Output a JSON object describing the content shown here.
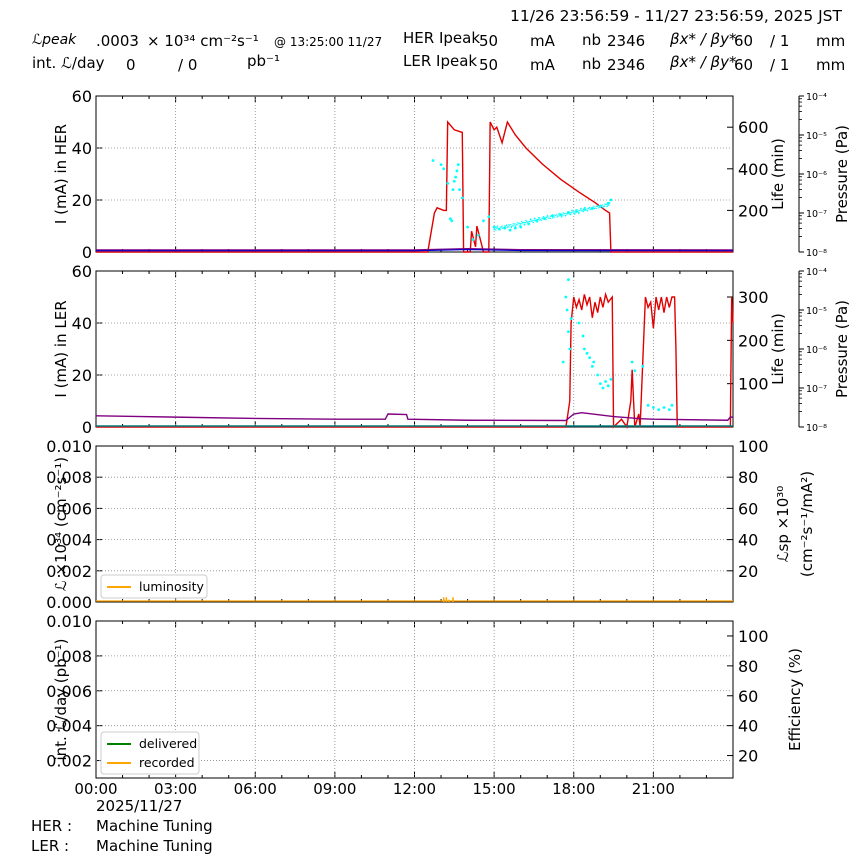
{
  "header": {
    "time_range": "11/26 23:56:59 - 11/27 23:56:59, 2025 JST",
    "lpeak_label": "ℒpeak",
    "lpeak_value": ".0003",
    "lpeak_unit": "× 10³⁴ cm⁻²s⁻¹",
    "lpeak_time": "@ 13:25:00 11/27",
    "intl_label": "int. ℒ/day",
    "intl_value": "0",
    "intl_sep": "/ 0",
    "intl_unit": "pb⁻¹",
    "her": {
      "label": "HER Ipeak",
      "current": "50",
      "current_unit": "mA",
      "nb_label": "nb",
      "nb": "2346",
      "beta_label": "βx* / βy*",
      "beta_x": "60",
      "beta_y": "/ 1",
      "beta_unit": "mm"
    },
    "ler": {
      "label": "LER Ipeak",
      "current": "50",
      "current_unit": "mA",
      "nb_label": "nb",
      "nb": "2346",
      "beta_label": "βx* / βy*",
      "beta_x": "60",
      "beta_y": "/ 1",
      "beta_unit": "mm"
    }
  },
  "footer": {
    "date": "2025/11/27",
    "her_label": "HER :",
    "her_status": "Machine Tuning",
    "ler_label": "LER :",
    "ler_status": "Machine Tuning"
  },
  "colors": {
    "current": "#e00000",
    "life": "#00ffff",
    "pressure_low": "#0000cc",
    "pressure_high": "#800080",
    "luminosity": "#ffa500",
    "delivered": "#008000",
    "recorded": "#ffa500",
    "baseline": "#008080"
  },
  "chart_data": [
    {
      "type": "line",
      "panel": "HER",
      "ylabel": "I (mA) in HER",
      "ylabel_right": "Life (min)",
      "ylabel_pressure": "Pressure (Pa)",
      "xlim": [
        0,
        24
      ],
      "ylim": [
        0,
        60
      ],
      "yticks": [
        "0",
        "20",
        "40",
        "60"
      ],
      "ylim_right": [
        0,
        750
      ],
      "yticks_right": [
        "200",
        "400",
        "600"
      ],
      "pressure_ticks": [
        "10⁻⁴",
        "10⁻⁵",
        "10⁻⁶",
        "10⁻⁷",
        "10⁻⁸"
      ],
      "series": [
        {
          "role": "current",
          "x": [
            0,
            12.5,
            12.75,
            12.85,
            13.1,
            13.2,
            13.25,
            13.5,
            13.8,
            13.85,
            14.1,
            14.15,
            14.3,
            14.35,
            14.6,
            14.65,
            14.8,
            14.85,
            15.0,
            15.1,
            15.3,
            15.5,
            15.8,
            16.2,
            16.8,
            17.5,
            18.2,
            18.8,
            19.2,
            19.35,
            19.4,
            24
          ],
          "y": [
            0,
            0,
            15,
            17,
            16,
            16,
            50,
            47,
            46,
            0,
            0,
            8,
            2,
            10,
            0,
            0,
            0,
            50,
            47,
            48,
            42,
            50,
            45,
            40,
            34,
            28,
            23,
            19,
            16,
            15,
            0,
            0
          ]
        },
        {
          "role": "life",
          "points": [
            [
              12.7,
              440
            ],
            [
              13.0,
              420
            ],
            [
              13.1,
              400
            ],
            [
              13.25,
              330
            ],
            [
              13.35,
              160
            ],
            [
              13.4,
              150
            ],
            [
              13.45,
              300
            ],
            [
              13.5,
              340
            ],
            [
              13.55,
              360
            ],
            [
              13.6,
              390
            ],
            [
              13.65,
              420
            ],
            [
              13.7,
              300
            ],
            [
              13.8,
              260
            ],
            [
              14.0,
              120
            ],
            [
              14.2,
              60
            ],
            [
              14.4,
              80
            ],
            [
              14.6,
              150
            ],
            [
              14.8,
              170
            ],
            [
              15.0,
              120
            ],
            [
              15.2,
              110
            ],
            [
              15.4,
              115
            ],
            [
              15.6,
              105
            ],
            [
              15.8,
              115
            ],
            [
              16.0,
              120
            ],
            [
              16.3,
              135
            ],
            [
              16.6,
              150
            ],
            [
              16.9,
              160
            ],
            [
              17.2,
              175
            ],
            [
              17.5,
              180
            ],
            [
              17.8,
              190
            ],
            [
              18.1,
              195
            ],
            [
              18.4,
              205
            ],
            [
              18.7,
              210
            ],
            [
              19.0,
              220
            ],
            [
              19.3,
              235
            ],
            [
              19.4,
              250
            ]
          ]
        },
        {
          "role": "pressure",
          "x": [
            0,
            12,
            14,
            16,
            24
          ],
          "y": [
            0.5,
            0.5,
            1.0,
            0.6,
            0.5
          ]
        }
      ]
    },
    {
      "type": "line",
      "panel": "LER",
      "ylabel": "I (mA) in LER",
      "ylabel_right": "Life (min)",
      "ylabel_pressure": "Pressure (Pa)",
      "xlim": [
        0,
        24
      ],
      "ylim": [
        0,
        60
      ],
      "yticks": [
        "0",
        "20",
        "40",
        "60"
      ],
      "ylim_right": [
        0,
        360
      ],
      "yticks_right": [
        "100",
        "200",
        "300"
      ],
      "pressure_ticks": [
        "10⁻⁴",
        "10⁻⁵",
        "10⁻⁶",
        "10⁻⁷",
        "10⁻⁸"
      ],
      "series": [
        {
          "role": "current",
          "x": [
            0,
            17.7,
            17.75,
            17.85,
            17.9,
            18.0,
            18.1,
            18.2,
            18.3,
            18.4,
            18.5,
            18.6,
            18.7,
            18.8,
            18.9,
            19.0,
            19.1,
            19.2,
            19.3,
            19.45,
            19.5,
            19.8,
            20.0,
            20.15,
            20.2,
            20.3,
            20.45,
            20.5,
            20.7,
            20.8,
            20.9,
            21.0,
            21.1,
            21.2,
            21.3,
            21.4,
            21.5,
            21.6,
            21.7,
            21.8,
            21.85,
            21.9,
            23.9,
            23.95,
            24.0
          ],
          "y": [
            0,
            0,
            3,
            10,
            40,
            50,
            46,
            49,
            45,
            51,
            47,
            50,
            42,
            48,
            44,
            50,
            46,
            51,
            48,
            50,
            0,
            3,
            0,
            10,
            22,
            0,
            5,
            0,
            50,
            46,
            48,
            38,
            50,
            45,
            50,
            44,
            50,
            46,
            50,
            50,
            30,
            0,
            0,
            50,
            40
          ]
        },
        {
          "role": "life",
          "points": [
            [
              17.6,
              150
            ],
            [
              17.7,
              300
            ],
            [
              17.8,
              340
            ],
            [
              17.75,
              270
            ],
            [
              17.8,
              220
            ],
            [
              17.85,
              180
            ],
            [
              17.9,
              250
            ],
            [
              18.2,
              240
            ],
            [
              18.35,
              210
            ],
            [
              18.4,
              180
            ],
            [
              18.5,
              170
            ],
            [
              18.6,
              160
            ],
            [
              18.7,
              140
            ],
            [
              18.75,
              150
            ],
            [
              18.9,
              120
            ],
            [
              19.0,
              100
            ],
            [
              19.1,
              90
            ],
            [
              19.2,
              105
            ],
            [
              19.3,
              95
            ],
            [
              19.4,
              110
            ],
            [
              20.2,
              150
            ],
            [
              20.3,
              130
            ],
            [
              20.6,
              140
            ],
            [
              20.8,
              50
            ],
            [
              21.0,
              45
            ],
            [
              21.2,
              40
            ],
            [
              21.4,
              45
            ],
            [
              21.6,
              40
            ],
            [
              21.7,
              50
            ]
          ]
        },
        {
          "role": "pressure",
          "x": [
            0,
            3,
            6,
            9,
            10.9,
            11.0,
            11.7,
            11.75,
            14,
            17.7,
            18.0,
            18.3,
            19.5,
            20.5,
            21.0,
            23.8,
            23.9,
            24
          ],
          "y": [
            4.3,
            3.8,
            3.3,
            3.0,
            3.0,
            5.0,
            4.8,
            3.0,
            2.6,
            2.5,
            5.0,
            5.5,
            4.0,
            3.2,
            3.0,
            2.6,
            3.8,
            3.8
          ]
        },
        {
          "role": "baseline",
          "x": [
            0,
            24
          ],
          "y": [
            0,
            0
          ]
        }
      ]
    },
    {
      "type": "line",
      "panel": "luminosity",
      "ylabel": "ℒ ×10³⁴ (cm⁻²s⁻¹)",
      "ylabel_right_1": "ℒsp ×10³⁰",
      "ylabel_right_2": "(cm⁻²s⁻¹/mA²)",
      "xlim": [
        0,
        24
      ],
      "ylim": [
        0,
        0.01
      ],
      "yticks": [
        "0.000",
        "0.002",
        "0.004",
        "0.006",
        "0.008",
        "0.010"
      ],
      "ylim_right": [
        0,
        100
      ],
      "yticks_right": [
        "20",
        "40",
        "60",
        "80",
        "100"
      ],
      "legend": [
        {
          "name": "luminosity"
        }
      ],
      "series": [
        {
          "role": "luminosity",
          "name": "luminosity",
          "spikes_x": [
            13.1,
            13.2,
            13.3,
            13.45
          ],
          "spikes_y": [
            0.0003,
            0.0003,
            0.00015,
            0.0003
          ]
        }
      ]
    },
    {
      "type": "line",
      "panel": "integrated",
      "ylabel": "int. ℒ/day (pb⁻¹)",
      "ylabel_right": "Efficiency (%)",
      "xlim": [
        0,
        24
      ],
      "ylim": [
        0.001,
        0.01
      ],
      "yticks": [
        "0.002",
        "0.004",
        "0.006",
        "0.008",
        "0.010"
      ],
      "ylim_right": [
        5,
        110
      ],
      "yticks_right": [
        "20",
        "40",
        "60",
        "80",
        "100"
      ],
      "xticks": [
        "00:00",
        "03:00",
        "06:00",
        "09:00",
        "12:00",
        "15:00",
        "18:00",
        "21:00"
      ],
      "legend": [
        {
          "name": "delivered"
        },
        {
          "name": "recorded"
        }
      ],
      "series": [
        {
          "role": "delivered",
          "name": "delivered",
          "x": [],
          "y": []
        },
        {
          "role": "recorded",
          "name": "recorded",
          "x": [],
          "y": []
        }
      ]
    }
  ]
}
